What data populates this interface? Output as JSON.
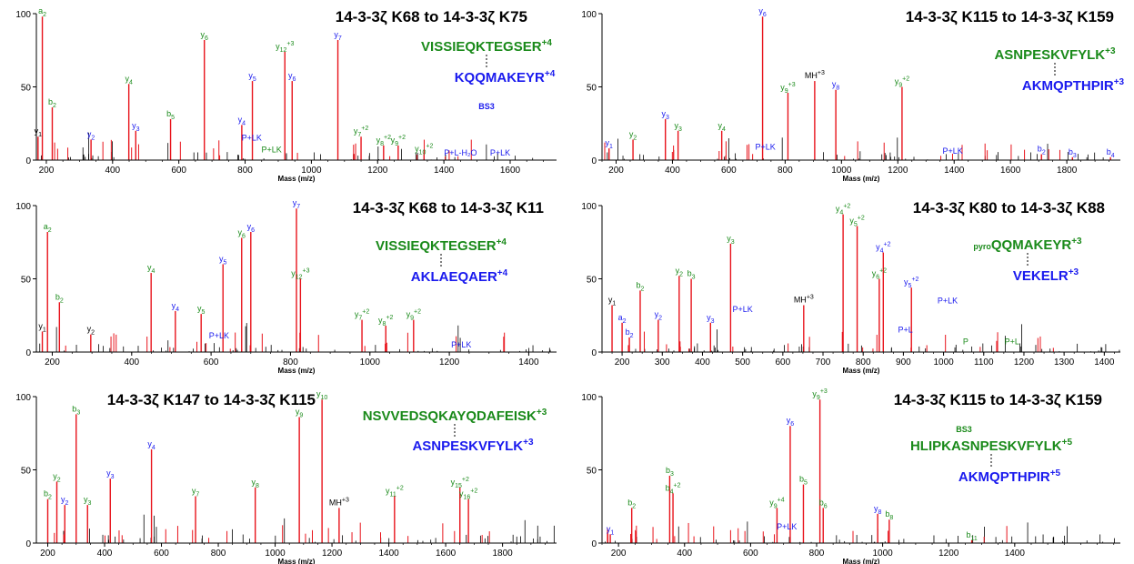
{
  "figure": {
    "colors": {
      "red": "#e8131b",
      "green": "#1a8a1a",
      "blue": "#1a1aee",
      "black": "#000000"
    },
    "axis_label": "Mass (m/z)",
    "y_ticks": [
      "0",
      "50",
      "100"
    ]
  },
  "chart_data": [
    {
      "type": "bar",
      "title": "14-3-3ζ K68 to 14-3-3ζ K75",
      "xlabel": "Mass (m/z)",
      "ylabel": "",
      "xlim": [
        170,
        1740
      ],
      "ylim": [
        0,
        100
      ],
      "x_ticks": [
        200,
        400,
        600,
        800,
        1000,
        1200,
        1400,
        1600
      ],
      "peptides": [
        {
          "text": "VISSIEQKTEGSER",
          "charge": "+4",
          "color": "green"
        },
        {
          "text": "KQQMAKEYR",
          "charge": "+4",
          "color": "blue"
        }
      ],
      "linker_label": "BS3",
      "labeled_peaks": [
        {
          "mz": 188,
          "intensity": 98,
          "label": "a",
          "sub": "2",
          "color": "green"
        },
        {
          "mz": 218,
          "intensity": 36,
          "label": "b",
          "sub": "2",
          "color": "green"
        },
        {
          "mz": 175,
          "intensity": 16,
          "label": "y",
          "sub": "1",
          "color": "black"
        },
        {
          "mz": 335,
          "intensity": 14,
          "label": "y",
          "sub": "2",
          "color": "blue"
        },
        {
          "mz": 449,
          "intensity": 52,
          "label": "y",
          "sub": "4",
          "color": "green"
        },
        {
          "mz": 470,
          "intensity": 20,
          "label": "y",
          "sub": "3",
          "color": "blue"
        },
        {
          "mz": 575,
          "intensity": 28,
          "label": "b",
          "sub": "5",
          "color": "green"
        },
        {
          "mz": 677,
          "intensity": 82,
          "label": "y",
          "sub": "6",
          "color": "green"
        },
        {
          "mz": 790,
          "intensity": 24,
          "label": "y",
          "sub": "4",
          "color": "blue"
        },
        {
          "mz": 822,
          "intensity": 54,
          "label": "y",
          "sub": "5",
          "color": "blue"
        },
        {
          "mz": 920,
          "intensity": 74,
          "label": "y",
          "sub": "12",
          "sup": "+3",
          "color": "green"
        },
        {
          "mz": 942,
          "intensity": 54,
          "label": "y",
          "sub": "6",
          "color": "blue"
        },
        {
          "mz": 1080,
          "intensity": 82,
          "label": "y",
          "sub": "7",
          "color": "blue"
        },
        {
          "mz": 1150,
          "intensity": 16,
          "label": "y",
          "sub": "7",
          "sup": "+2",
          "color": "green"
        },
        {
          "mz": 1218,
          "intensity": 10,
          "label": "y",
          "sub": "8",
          "sup": "+2",
          "color": "green"
        },
        {
          "mz": 1262,
          "intensity": 10,
          "label": "y",
          "sub": "9",
          "sup": "+2",
          "color": "green"
        },
        {
          "mz": 1340,
          "intensity": 4,
          "label": "y",
          "sub": "10",
          "sup": "+2",
          "color": "green"
        }
      ],
      "text_labels": [
        {
          "mz": 1450,
          "intensity": 2,
          "text": "P+L-H₂O",
          "color": "blue"
        },
        {
          "mz": 1570,
          "intensity": 2,
          "text": "P+LK",
          "color": "blue"
        },
        {
          "mz": 820,
          "intensity": 12,
          "text": "P+LK",
          "color": "blue"
        },
        {
          "mz": 880,
          "intensity": 4,
          "text": "P+LK",
          "color": "green"
        }
      ]
    },
    {
      "type": "bar",
      "title": "14-3-3ζ K115 to 14-3-3ζ K159",
      "xlabel": "Mass (m/z)",
      "ylabel": "",
      "xlim": [
        150,
        1990
      ],
      "ylim": [
        0,
        100
      ],
      "x_ticks": [
        200,
        400,
        600,
        800,
        1000,
        1200,
        1400,
        1600,
        1800
      ],
      "peptides": [
        {
          "text": "ASNPESKVFYLK",
          "charge": "+3",
          "color": "green"
        },
        {
          "text": "AKMQPTHPIR",
          "charge": "+3",
          "color": "blue"
        }
      ],
      "linker_label": "",
      "labeled_peaks": [
        {
          "mz": 175,
          "intensity": 8,
          "label": "y",
          "sub": "1",
          "color": "blue"
        },
        {
          "mz": 260,
          "intensity": 14,
          "label": "y",
          "sub": "2",
          "color": "green"
        },
        {
          "mz": 375,
          "intensity": 28,
          "label": "y",
          "sub": "3",
          "color": "blue"
        },
        {
          "mz": 420,
          "intensity": 20,
          "label": "y",
          "sub": "3",
          "color": "green"
        },
        {
          "mz": 575,
          "intensity": 20,
          "label": "y",
          "sub": "4",
          "color": "green"
        },
        {
          "mz": 720,
          "intensity": 98,
          "label": "y",
          "sub": "6",
          "color": "blue"
        },
        {
          "mz": 810,
          "intensity": 46,
          "label": "y",
          "sub": "9",
          "sup": "+3",
          "color": "green"
        },
        {
          "mz": 905,
          "intensity": 54,
          "label": "MH",
          "sup": "+3",
          "color": "black"
        },
        {
          "mz": 980,
          "intensity": 48,
          "label": "y",
          "sub": "8",
          "color": "blue"
        },
        {
          "mz": 1215,
          "intensity": 50,
          "label": "y",
          "sub": "9",
          "sup": "+2",
          "color": "green"
        },
        {
          "mz": 1710,
          "intensity": 4,
          "label": "b",
          "sub": "2",
          "color": "blue"
        },
        {
          "mz": 1820,
          "intensity": 2,
          "label": "b",
          "sub": "3",
          "color": "blue"
        },
        {
          "mz": 1955,
          "intensity": 2,
          "label": "b",
          "sub": "4",
          "color": "blue"
        }
      ],
      "text_labels": [
        {
          "mz": 1395,
          "intensity": 3,
          "text": "P+LK",
          "color": "blue"
        },
        {
          "mz": 730,
          "intensity": 6,
          "text": "P+LK",
          "color": "blue"
        }
      ]
    },
    {
      "type": "bar",
      "title": "14-3-3ζ K68 to 14-3-3ζ K11",
      "xlabel": "Mass (m/z)",
      "ylabel": "",
      "xlim": [
        160,
        1470
      ],
      "ylim": [
        0,
        100
      ],
      "x_ticks": [
        200,
        400,
        600,
        800,
        1000,
        1200,
        1400
      ],
      "peptides": [
        {
          "text": "VISSIEQKTEGSER",
          "charge": "+4",
          "color": "green"
        },
        {
          "text": "AKLAEQAER",
          "charge": "+4",
          "color": "blue"
        }
      ],
      "linker_label": "",
      "labeled_peaks": [
        {
          "mz": 188,
          "intensity": 82,
          "label": "a",
          "sub": "2",
          "color": "green"
        },
        {
          "mz": 218,
          "intensity": 34,
          "label": "b",
          "sub": "2",
          "color": "green"
        },
        {
          "mz": 175,
          "intensity": 14,
          "label": "y",
          "sub": "1",
          "color": "black"
        },
        {
          "mz": 297,
          "intensity": 12,
          "label": "y",
          "sub": "2",
          "color": "black"
        },
        {
          "mz": 449,
          "intensity": 54,
          "label": "y",
          "sub": "4",
          "color": "green"
        },
        {
          "mz": 510,
          "intensity": 28,
          "label": "y",
          "sub": "4",
          "color": "blue"
        },
        {
          "mz": 575,
          "intensity": 26,
          "label": "y",
          "sub": "5",
          "color": "green"
        },
        {
          "mz": 630,
          "intensity": 60,
          "label": "y",
          "sub": "5",
          "color": "blue"
        },
        {
          "mz": 677,
          "intensity": 78,
          "label": "y",
          "sub": "6",
          "color": "green"
        },
        {
          "mz": 700,
          "intensity": 82,
          "label": "y",
          "sub": "6",
          "color": "blue"
        },
        {
          "mz": 815,
          "intensity": 98,
          "label": "y",
          "sub": "7",
          "color": "blue"
        },
        {
          "mz": 825,
          "intensity": 50,
          "label": "y",
          "sub": "12",
          "sup": "+3",
          "color": "green"
        },
        {
          "mz": 980,
          "intensity": 22,
          "label": "y",
          "sub": "7",
          "sup": "+2",
          "color": "green"
        },
        {
          "mz": 1040,
          "intensity": 18,
          "label": "y",
          "sub": "8",
          "sup": "+2",
          "color": "green"
        },
        {
          "mz": 1110,
          "intensity": 22,
          "label": "y",
          "sub": "9",
          "sup": "+2",
          "color": "green"
        }
      ],
      "text_labels": [
        {
          "mz": 1230,
          "intensity": 2,
          "text": "P+LK",
          "color": "blue"
        },
        {
          "mz": 620,
          "intensity": 8,
          "text": "P+LK",
          "color": "blue"
        }
      ]
    },
    {
      "type": "bar",
      "title": "14-3-3ζ K80 to 14-3-3ζ K88",
      "xlabel": "Mass (m/z)",
      "ylabel": "",
      "xlim": [
        150,
        1440
      ],
      "ylim": [
        0,
        100
      ],
      "x_ticks": [
        200,
        300,
        400,
        500,
        600,
        700,
        800,
        900,
        1000,
        1100,
        1200,
        1300,
        1400
      ],
      "peptides": [
        {
          "text": "QQMAKEYR",
          "prefix": "pyro",
          "charge": "+3",
          "color": "green"
        },
        {
          "text": "VEKELR",
          "charge": "+3",
          "color": "blue"
        }
      ],
      "linker_label": "",
      "labeled_peaks": [
        {
          "mz": 175,
          "intensity": 32,
          "label": "y",
          "sub": "1",
          "color": "black"
        },
        {
          "mz": 200,
          "intensity": 20,
          "label": "a",
          "sub": "2",
          "color": "blue"
        },
        {
          "mz": 218,
          "intensity": 10,
          "label": "b",
          "sub": "2",
          "color": "blue"
        },
        {
          "mz": 245,
          "intensity": 42,
          "label": "b",
          "sub": "2",
          "color": "green"
        },
        {
          "mz": 290,
          "intensity": 22,
          "label": "y",
          "sub": "2",
          "color": "blue"
        },
        {
          "mz": 342,
          "intensity": 52,
          "label": "y",
          "sub": "2",
          "color": "green"
        },
        {
          "mz": 372,
          "intensity": 50,
          "label": "b",
          "sub": "3",
          "color": "green"
        },
        {
          "mz": 470,
          "intensity": 74,
          "label": "y",
          "sub": "3",
          "color": "green"
        },
        {
          "mz": 420,
          "intensity": 20,
          "label": "y",
          "sub": "3",
          "color": "blue"
        },
        {
          "mz": 652,
          "intensity": 32,
          "label": "MH",
          "sup": "+3",
          "color": "black"
        },
        {
          "mz": 750,
          "intensity": 94,
          "label": "y",
          "sub": "4",
          "sup": "+2",
          "color": "green"
        },
        {
          "mz": 785,
          "intensity": 86,
          "label": "y",
          "sub": "5",
          "sup": "+2",
          "color": "green"
        },
        {
          "mz": 850,
          "intensity": 68,
          "label": "y",
          "sub": "4",
          "sup": "+2",
          "color": "blue"
        },
        {
          "mz": 840,
          "intensity": 50,
          "label": "y",
          "sub": "6",
          "sup": "+2",
          "color": "green"
        },
        {
          "mz": 920,
          "intensity": 44,
          "label": "y",
          "sub": "5",
          "sup": "+2",
          "color": "blue"
        }
      ],
      "text_labels": [
        {
          "mz": 1010,
          "intensity": 32,
          "text": "P+LK",
          "color": "blue"
        },
        {
          "mz": 500,
          "intensity": 26,
          "text": "P+LK",
          "color": "blue"
        },
        {
          "mz": 905,
          "intensity": 12,
          "text": "P+L",
          "color": "blue"
        },
        {
          "mz": 1055,
          "intensity": 4,
          "text": "P",
          "color": "green"
        },
        {
          "mz": 1170,
          "intensity": 4,
          "text": "P+L",
          "color": "green"
        }
      ]
    },
    {
      "type": "bar",
      "title": "14-3-3ζ K147 to 14-3-3ζ K115",
      "xlabel": "Mass (m/z)",
      "ylabel": "",
      "xlim": [
        160,
        1990
      ],
      "ylim": [
        0,
        100
      ],
      "x_ticks": [
        200,
        400,
        600,
        800,
        1000,
        1200,
        1400,
        1600,
        1800
      ],
      "peptides": [
        {
          "text": "NSVVEDSQKAYQDAFEISK",
          "charge": "+3",
          "color": "green"
        },
        {
          "text": "ASNPESKVFYLK",
          "charge": "+3",
          "color": "blue"
        }
      ],
      "linker_label": "",
      "labeled_peaks": [
        {
          "mz": 200,
          "intensity": 30,
          "label": "b",
          "sub": "2",
          "color": "green"
        },
        {
          "mz": 232,
          "intensity": 42,
          "label": "y",
          "sub": "2",
          "color": "green"
        },
        {
          "mz": 260,
          "intensity": 26,
          "label": "y",
          "sub": "2",
          "color": "blue"
        },
        {
          "mz": 300,
          "intensity": 88,
          "label": "b",
          "sub": "3",
          "color": "green"
        },
        {
          "mz": 340,
          "intensity": 26,
          "label": "y",
          "sub": "3",
          "color": "green"
        },
        {
          "mz": 420,
          "intensity": 44,
          "label": "y",
          "sub": "3",
          "color": "blue"
        },
        {
          "mz": 565,
          "intensity": 64,
          "label": "y",
          "sub": "4",
          "color": "blue"
        },
        {
          "mz": 720,
          "intensity": 32,
          "label": "y",
          "sub": "7",
          "color": "green"
        },
        {
          "mz": 930,
          "intensity": 38,
          "label": "y",
          "sub": "8",
          "color": "green"
        },
        {
          "mz": 1085,
          "intensity": 86,
          "label": "y",
          "sub": "9",
          "color": "green"
        },
        {
          "mz": 1165,
          "intensity": 98,
          "label": "y",
          "sub": "10",
          "color": "green"
        },
        {
          "mz": 1225,
          "intensity": 24,
          "label": "MH",
          "sup": "+3",
          "color": "black"
        },
        {
          "mz": 1420,
          "intensity": 32,
          "label": "y",
          "sub": "11",
          "sup": "+2",
          "color": "green"
        },
        {
          "mz": 1650,
          "intensity": 38,
          "label": "y",
          "sub": "15",
          "sup": "+2",
          "color": "green"
        },
        {
          "mz": 1680,
          "intensity": 30,
          "label": "y",
          "sub": "16",
          "sup": "+2",
          "color": "green"
        }
      ],
      "text_labels": []
    },
    {
      "type": "bar",
      "title": "14-3-3ζ K115 to 14-3-3ζ K159",
      "xlabel": "Mass (m/z)",
      "ylabel": "",
      "xlim": [
        150,
        1720
      ],
      "ylim": [
        0,
        100
      ],
      "x_ticks": [
        200,
        400,
        600,
        800,
        1000,
        1200,
        1400
      ],
      "peptides": [
        {
          "text": "HLIPKASNPESKVFYLK",
          "charge": "+5",
          "color": "green"
        },
        {
          "text": "AKMQPTHPIR",
          "charge": "+5",
          "color": "blue"
        }
      ],
      "linker_label": "BS3",
      "labeled_peaks": [
        {
          "mz": 175,
          "intensity": 6,
          "label": "y",
          "sub": "1",
          "color": "blue"
        },
        {
          "mz": 240,
          "intensity": 24,
          "label": "b",
          "sub": "2",
          "color": "green"
        },
        {
          "mz": 355,
          "intensity": 46,
          "label": "b",
          "sub": "3",
          "color": "green"
        },
        {
          "mz": 365,
          "intensity": 34,
          "label": "b",
          "sub": "4",
          "sup": "+2",
          "color": "green"
        },
        {
          "mz": 720,
          "intensity": 80,
          "label": "y",
          "sub": "6",
          "color": "blue"
        },
        {
          "mz": 810,
          "intensity": 98,
          "label": "y",
          "sub": "9",
          "sup": "+3",
          "color": "green"
        },
        {
          "mz": 680,
          "intensity": 24,
          "label": "y",
          "sub": "9",
          "sup": "+4",
          "color": "green"
        },
        {
          "mz": 760,
          "intensity": 40,
          "label": "b",
          "sub": "5",
          "color": "green"
        },
        {
          "mz": 820,
          "intensity": 24,
          "label": "b",
          "sub": "6",
          "color": "green"
        },
        {
          "mz": 985,
          "intensity": 20,
          "label": "y",
          "sub": "8",
          "color": "blue"
        },
        {
          "mz": 1020,
          "intensity": 16,
          "label": "b",
          "sub": "8",
          "color": "green"
        },
        {
          "mz": 1270,
          "intensity": 2,
          "label": "b",
          "sub": "11",
          "color": "green"
        }
      ],
      "text_labels": [
        {
          "mz": 710,
          "intensity": 8,
          "text": "P+LK",
          "color": "blue"
        }
      ]
    }
  ]
}
